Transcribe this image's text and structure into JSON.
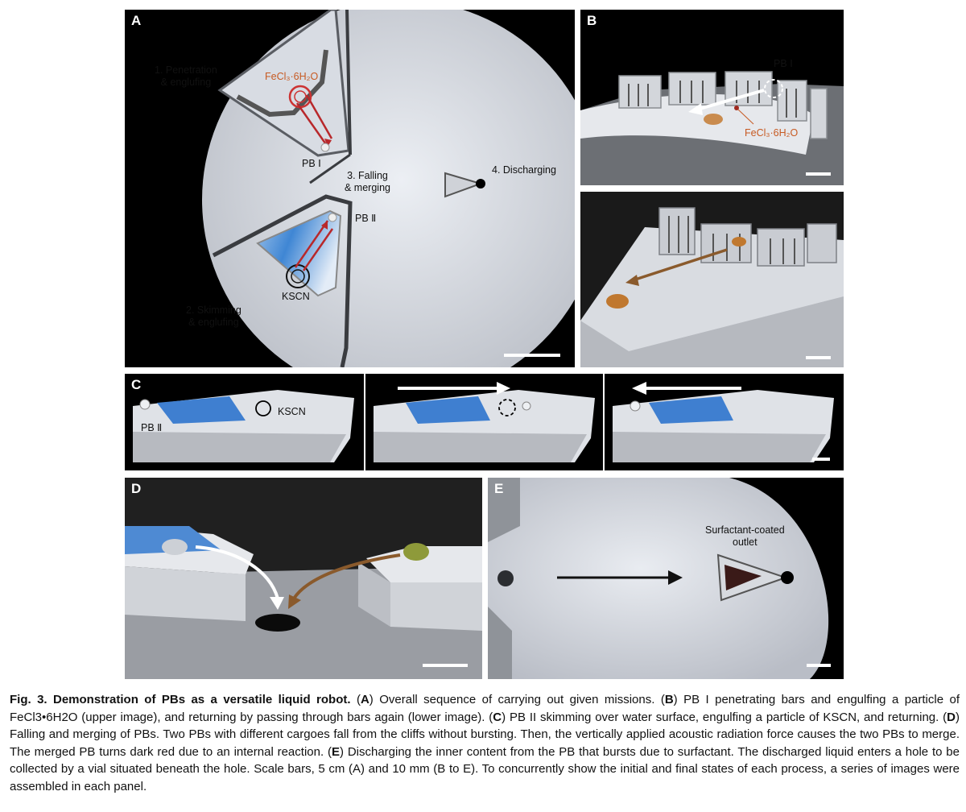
{
  "panels": {
    "A": {
      "label": "A",
      "step1": [
        "1. Penetration",
        "& englufing"
      ],
      "fecl3": "FeCl₃·6H₂O",
      "pb1": "PB Ⅰ",
      "step3": [
        "3. Falling",
        "& merging"
      ],
      "step4": "4. Discharging",
      "pb2": "PB Ⅱ",
      "kscn": "KSCN",
      "step2": [
        "2. Skimming",
        "& englufing"
      ]
    },
    "B": {
      "label": "B",
      "pb1": "PB Ⅰ",
      "fecl3": "FeCl₃·6H₂O"
    },
    "C": {
      "label": "C",
      "pb2": "PB Ⅱ",
      "kscn": "KSCN"
    },
    "D": {
      "label": "D"
    },
    "E": {
      "label": "E",
      "outlet": [
        "Surfactant-coated",
        "outlet"
      ]
    }
  },
  "caption": {
    "fig_title": "Fig. 3. Demonstration of PBs as a versatile liquid robot.",
    "segments": [
      {
        "ref": "A",
        "text": "Overall sequence of carrying out given missions."
      },
      {
        "ref": "B",
        "text": "PB I penetrating bars and engulfing a particle of FeCl3•6H2O (upper image), and returning by passing through bars again (lower image)."
      },
      {
        "ref": "C",
        "text": "PB II skimming over water surface, engulfing a particle of KSCN, and returning."
      },
      {
        "ref": "D",
        "text": "Falling and merging of PBs. Two PBs with different cargoes fall from the cliffs without bursting. Then, the vertically applied acoustic radiation force causes the two PBs to merge. The merged PB turns dark red due to an internal reaction."
      },
      {
        "ref": "E",
        "text": "Discharging the inner content from the PB that bursts due to surfactant. The discharged liquid enters a hole to be collected by a vial situated beneath the hole. Scale bars, 5 cm (A) and 10 mm (B to E). To concurrently show the initial and final states of each process, a series of images were assembled in each panel."
      }
    ]
  }
}
